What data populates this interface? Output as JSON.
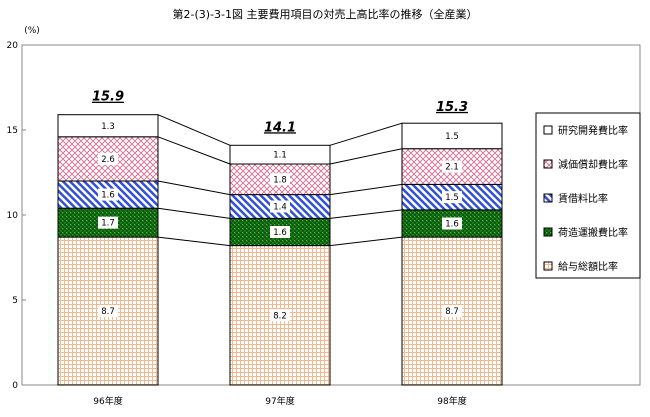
{
  "chart_data": {
    "type": "bar",
    "stacked": true,
    "title": "第2-(3)-3-1図 主要費用項目の対売上高比率の推移（全産業）",
    "ylabel": "(%)",
    "ylim": [
      0,
      20
    ],
    "yticks": [
      0,
      5,
      10,
      15,
      20
    ],
    "grid": false,
    "legend_position": "right",
    "categories": [
      "96年度",
      "97年度",
      "98年度"
    ],
    "totals": [
      15.9,
      14.1,
      15.3
    ],
    "total_labels": [
      "15.9",
      "14.1",
      "15.3"
    ],
    "series": [
      {
        "name": "給与総額比率",
        "values": [
          8.7,
          8.2,
          8.7
        ],
        "labels": [
          "8.7",
          "8.2",
          "8.7"
        ],
        "pattern": "grid",
        "color": "#f4b88f"
      },
      {
        "name": "荷造運搬費比率",
        "values": [
          1.7,
          1.6,
          1.6
        ],
        "labels": [
          "1.7",
          "1.6",
          "1.6"
        ],
        "pattern": "checker",
        "color": "#1a7a1a"
      },
      {
        "name": "賃借料比率",
        "values": [
          1.6,
          1.4,
          1.5
        ],
        "labels": [
          "1.6",
          "1.4",
          "1.5"
        ],
        "pattern": "diagonal",
        "color": "#3050d8"
      },
      {
        "name": "減価償却費比率",
        "values": [
          2.6,
          1.8,
          2.1
        ],
        "labels": [
          "2.6",
          "1.8",
          "2.1"
        ],
        "pattern": "crosshatch",
        "color": "#d87a9a"
      },
      {
        "name": "研究開発費比率",
        "values": [
          1.3,
          1.1,
          1.5
        ],
        "labels": [
          "1.3",
          "1.1",
          "1.5"
        ],
        "pattern": "none",
        "color": "#ffffff"
      }
    ]
  }
}
